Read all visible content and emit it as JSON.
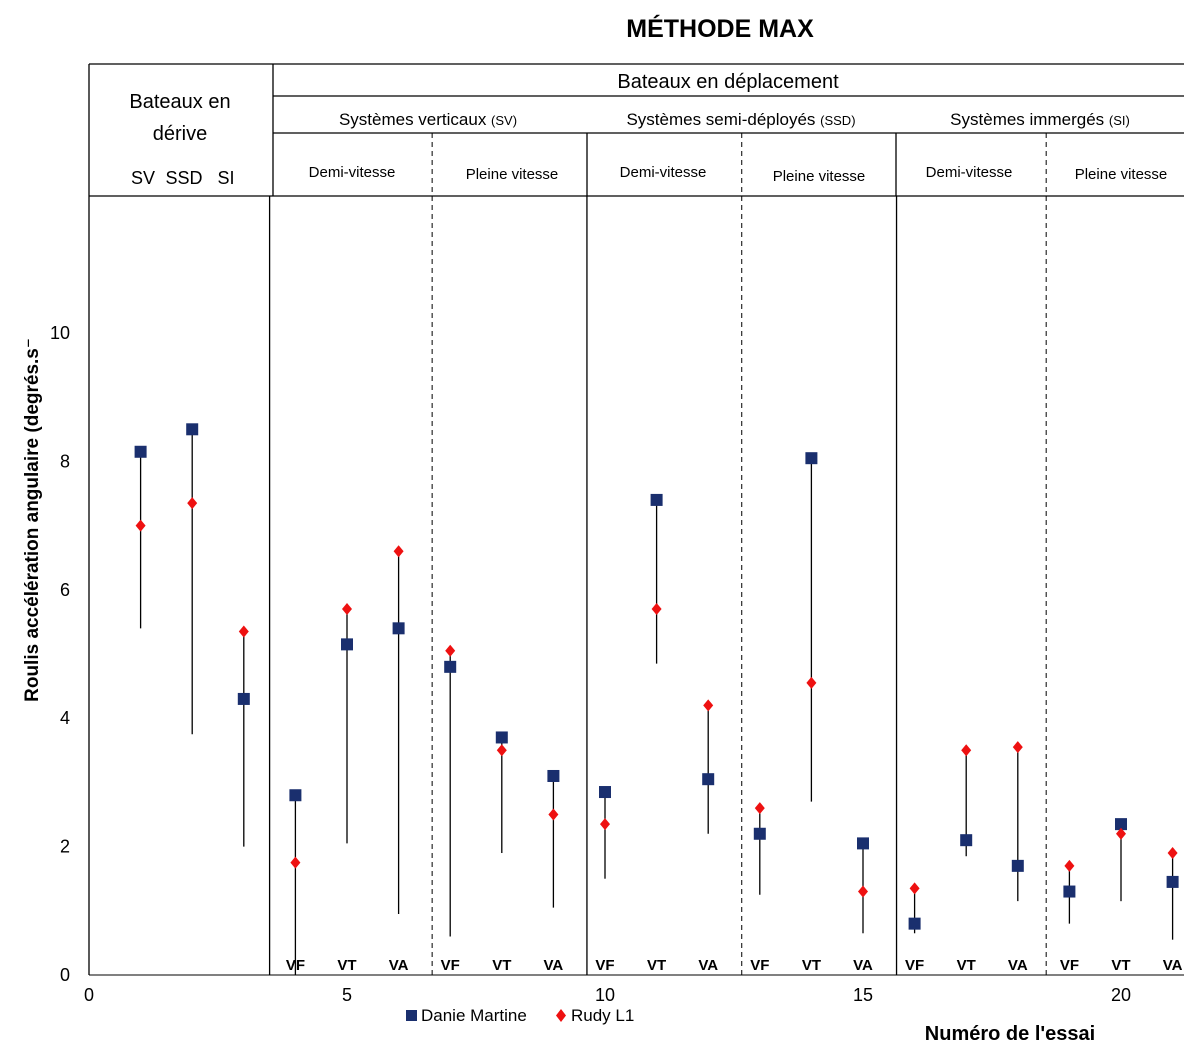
{
  "chart_data": {
    "type": "scatter",
    "title": "MÉTHODE MAX",
    "xlabel": "Numéro de l'essai",
    "ylabel": "Roulis accélération angulaire (degrés.s⁻",
    "xlim": [
      0,
      21.5
    ],
    "ylim": [
      0,
      12
    ],
    "x_ticks": [
      0,
      5,
      10,
      15,
      20
    ],
    "y_ticks": [
      0,
      2,
      4,
      6,
      8,
      10
    ],
    "legend_position": "bottom",
    "series": [
      {
        "name": "Danie Martine",
        "marker": "square",
        "color": "#1a2f6e",
        "x": [
          1,
          2,
          3,
          4,
          5,
          6,
          7,
          8,
          9,
          10,
          11,
          12,
          13,
          14,
          15,
          16,
          17,
          18,
          19,
          20,
          21
        ],
        "y": [
          8.15,
          8.5,
          4.3,
          2.8,
          5.15,
          5.4,
          4.8,
          3.7,
          3.1,
          2.85,
          7.4,
          3.05,
          2.2,
          8.05,
          2.05,
          0.8,
          2.1,
          1.7,
          1.3,
          2.35,
          1.45
        ]
      },
      {
        "name": "Rudy L1",
        "marker": "diamond",
        "color": "#ee1111",
        "x": [
          1,
          2,
          3,
          4,
          5,
          6,
          7,
          8,
          9,
          10,
          11,
          12,
          13,
          14,
          15,
          16,
          17,
          18,
          19,
          20,
          21
        ],
        "y": [
          7.0,
          7.35,
          5.35,
          1.75,
          5.7,
          6.6,
          5.05,
          3.5,
          2.5,
          2.35,
          5.7,
          4.2,
          2.6,
          4.55,
          1.3,
          1.35,
          3.5,
          3.55,
          1.7,
          2.2,
          1.9
        ]
      }
    ],
    "range_lines": {
      "x": [
        1,
        2,
        3,
        4,
        5,
        6,
        7,
        8,
        9,
        10,
        11,
        12,
        13,
        14,
        15,
        16,
        17,
        18,
        19,
        20,
        21
      ],
      "low": [
        5.4,
        3.75,
        2.0,
        0.0,
        2.05,
        0.95,
        0.6,
        1.9,
        1.05,
        1.5,
        4.85,
        2.2,
        1.25,
        2.7,
        0.65,
        0.65,
        1.85,
        1.15,
        0.8,
        1.15,
        0.55
      ],
      "high": [
        8.15,
        8.5,
        5.35,
        2.8,
        5.7,
        6.6,
        5.05,
        3.7,
        3.1,
        2.85,
        7.4,
        4.2,
        2.6,
        8.05,
        2.05,
        1.35,
        3.5,
        3.55,
        1.7,
        2.35,
        1.9
      ]
    },
    "run_labels": [
      "VF",
      "VT",
      "VA",
      "VF",
      "VT",
      "VA",
      "VF",
      "VT",
      "VA",
      "VF",
      "VT",
      "VA",
      "VF",
      "VT",
      "VA",
      "VF",
      "VT",
      "VA"
    ],
    "headers": {
      "drift": {
        "line1": "Bateaux en",
        "line2": "dérive",
        "subs": [
          "SV",
          "SSD",
          "SI"
        ]
      },
      "moving": "Bateaux en déplacement",
      "systems": [
        {
          "label": "Systèmes verticaux ",
          "abbr": "(SV)"
        },
        {
          "label": "Systèmes semi-déployés ",
          "abbr": "(SSD)"
        },
        {
          "label": "Systèmes immergés ",
          "abbr": "(SI)"
        }
      ],
      "speeds": [
        "Demi-vitesse",
        "Pleine vitesse",
        "Demi-vitesse",
        "Pleine vitesse",
        "Demi-vitesse",
        "Pleine vitesse"
      ]
    }
  }
}
